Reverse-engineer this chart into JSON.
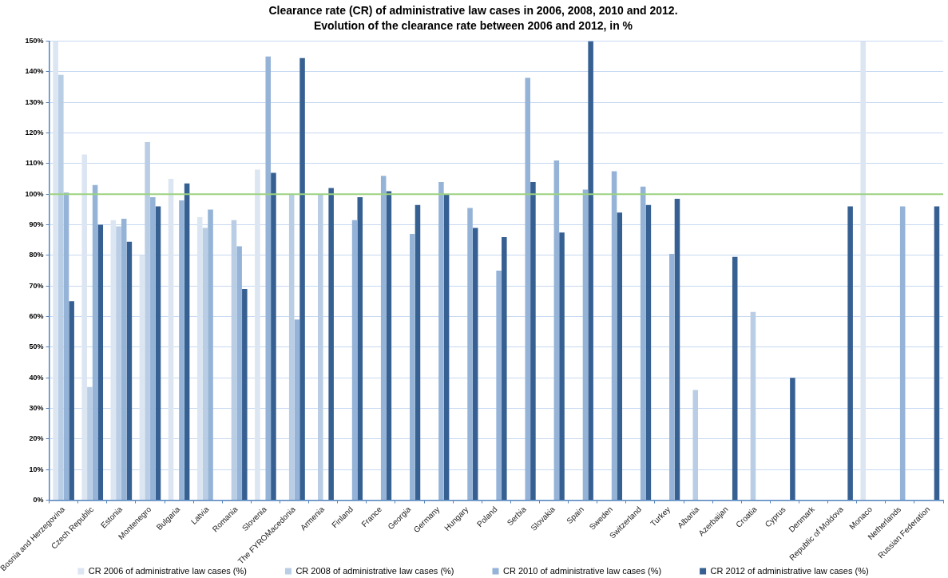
{
  "chart_data": {
    "type": "bar",
    "title": "Clearance rate (CR) of administrative law cases in 2006, 2008, 2010 and 2012.",
    "subtitle": "Evolution of the clearance rate between 2006 and 2012, in %",
    "categories": [
      "Bosnia and Herzegovina",
      "Czech Republic",
      "Estonia",
      "Montenegro",
      "Bulgaria",
      "Latvia",
      "Romania",
      "Slovenia",
      "The FYROMacedonia",
      "Armenia",
      "Finland",
      "France",
      "Georgia",
      "Germany",
      "Hungary",
      "Poland",
      "Serbia",
      "Slovakia",
      "Spain",
      "Sweden",
      "Switzerland",
      "Turkey",
      "Albania",
      "Azerbaijan",
      "Croatia",
      "Cyprus",
      "Denmark",
      "Republic of Moldova",
      "Monaco",
      "Netherlands",
      "Russian Federation"
    ],
    "series": [
      {
        "name": "CR 2006 of administrative law cases (%)",
        "color": "#dce6f2",
        "values": [
          150,
          113,
          91.5,
          80,
          105,
          92.5,
          null,
          108,
          null,
          null,
          null,
          null,
          null,
          null,
          null,
          null,
          null,
          null,
          null,
          null,
          null,
          null,
          null,
          null,
          null,
          null,
          null,
          null,
          150,
          null,
          null
        ]
      },
      {
        "name": "CR 2008 of administrative law cases (%)",
        "color": "#b9cde5",
        "values": [
          139,
          37,
          89.5,
          117,
          null,
          89,
          91.5,
          null,
          100,
          100,
          null,
          null,
          null,
          null,
          null,
          null,
          null,
          null,
          null,
          null,
          null,
          null,
          36,
          null,
          61.5,
          null,
          null,
          null,
          null,
          null,
          null
        ]
      },
      {
        "name": "CR 2010 of administrative law cases (%)",
        "color": "#95b3d7",
        "values": [
          100.5,
          103,
          92,
          99,
          98,
          95,
          83,
          145,
          59,
          null,
          91.5,
          106,
          87,
          104,
          95.5,
          75,
          138,
          111,
          101.5,
          107.5,
          102.5,
          80.5,
          null,
          null,
          null,
          null,
          null,
          null,
          null,
          96,
          null
        ]
      },
      {
        "name": "CR 2012 of administrative law cases (%)",
        "color": "#376092",
        "values": [
          65,
          90,
          84.5,
          96,
          103.5,
          null,
          69,
          107,
          144.5,
          102,
          99,
          101,
          96.5,
          100,
          89,
          86,
          104,
          87.5,
          150,
          94,
          96.5,
          98.5,
          null,
          79.5,
          null,
          40,
          null,
          96,
          null,
          null,
          96
        ]
      }
    ],
    "ylim": [
      0,
      150
    ],
    "yticks": [
      {
        "value": 0,
        "label": "0%"
      },
      {
        "value": 10,
        "label": "10%"
      },
      {
        "value": 20,
        "label": "20%"
      },
      {
        "value": 30,
        "label": "30%"
      },
      {
        "value": 40,
        "label": "40%"
      },
      {
        "value": 50,
        "label": "50%"
      },
      {
        "value": 60,
        "label": "60%"
      },
      {
        "value": 70,
        "label": "70%"
      },
      {
        "value": 80,
        "label": "80%"
      },
      {
        "value": 90,
        "label": "90%"
      },
      {
        "value": 100,
        "label": "100%"
      },
      {
        "value": 110,
        "label": "110%"
      },
      {
        "value": 120,
        "label": "120%"
      },
      {
        "value": 130,
        "label": "130%"
      },
      {
        "value": 140,
        "label": "140%"
      },
      {
        "value": 150,
        "label": "150%"
      }
    ],
    "ref_lines": [
      {
        "axis": "y",
        "value": 100,
        "color": "#9bd27f"
      }
    ],
    "grid": "y",
    "legend": "bottom"
  }
}
